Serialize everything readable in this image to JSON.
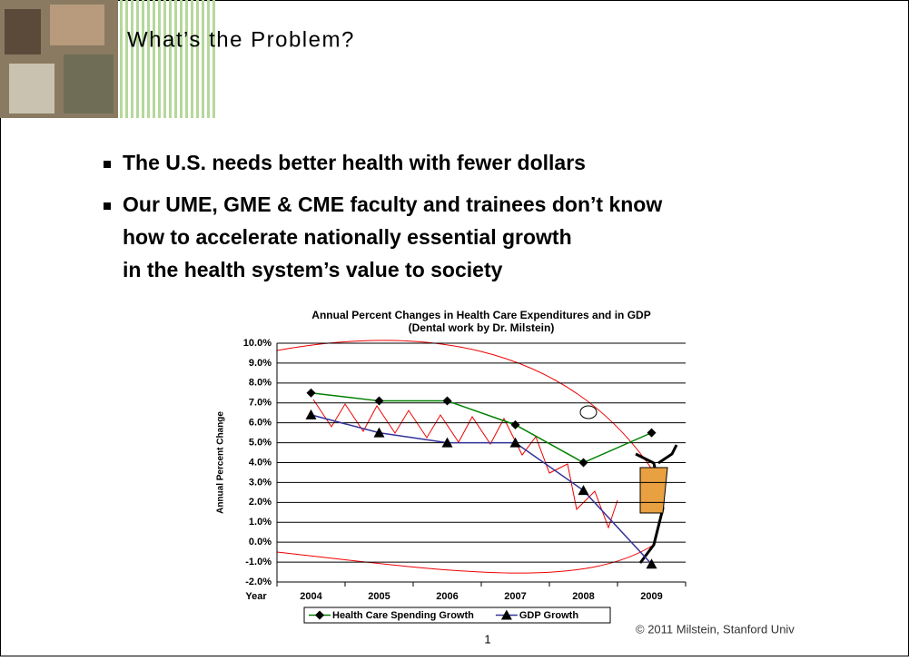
{
  "slide": {
    "title": "What’s the Problem?",
    "bullets": [
      [
        "The U.S. needs better health with fewer dollars"
      ],
      [
        "Our UME, GME & CME faculty and trainees don’t know",
        "how to accelerate nationally essential growth",
        "in the health system’s value to society"
      ]
    ],
    "copyright": "© 2011 Milstein, Stanford Univ",
    "page_number": "1"
  },
  "chart_data": {
    "type": "line",
    "title": "Annual Percent Changes in Health Care Expenditures and in GDP",
    "subtitle": "(Dental work by Dr. Milstein)",
    "y_label": "Annual Percent Change",
    "x_label": "Year",
    "categories": [
      "2004",
      "2005",
      "2006",
      "2007",
      "2008",
      "2009"
    ],
    "series": [
      {
        "name": "Health Care Spending Growth",
        "color": "#008000",
        "marker": "diamond",
        "values": [
          7.5,
          7.1,
          7.1,
          5.9,
          4.0,
          5.5
        ]
      },
      {
        "name": "GDP Growth",
        "color": "#333399",
        "marker": "triangle",
        "values": [
          6.4,
          5.5,
          5.0,
          5.0,
          2.6,
          -1.1
        ]
      }
    ],
    "ylim": [
      -2,
      10
    ],
    "yticks": [
      {
        "value": -2,
        "label": "-2.0%"
      },
      {
        "value": -1,
        "label": "-1.0%"
      },
      {
        "value": 0,
        "label": "0.0%"
      },
      {
        "value": 1,
        "label": "1.0%"
      },
      {
        "value": 2,
        "label": "2.0%"
      },
      {
        "value": 3,
        "label": "3.0%"
      },
      {
        "value": 4,
        "label": "4.0%"
      },
      {
        "value": 5,
        "label": "5.0%"
      },
      {
        "value": 6,
        "label": "6.0%"
      },
      {
        "value": 7,
        "label": "7.0%"
      },
      {
        "value": 8,
        "label": "8.0%"
      },
      {
        "value": 9,
        "label": "9.0%"
      },
      {
        "value": 10,
        "label": "10.0%"
      }
    ],
    "grid": true,
    "legend": "bottom"
  }
}
